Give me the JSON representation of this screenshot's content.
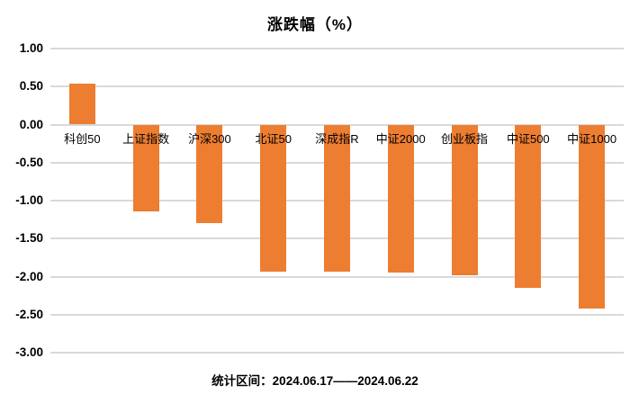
{
  "page": {
    "title": "涨跌幅（%）",
    "caption": "统计区间：2024.06.17——2024.06.22"
  },
  "colors": {
    "bar": "#ED7D31",
    "gridline": "#D9D9D9",
    "text": "#000000",
    "background": "#FFFFFF"
  },
  "chart_data": {
    "type": "bar",
    "title": "涨跌幅（%）",
    "categories": [
      "科创50",
      "上证指数",
      "沪深300",
      "北证50",
      "深成指R",
      "中证2000",
      "创业板指",
      "中证500",
      "中证1000"
    ],
    "values": [
      0.54,
      -1.14,
      -1.3,
      -1.93,
      -1.94,
      -1.95,
      -1.98,
      -2.15,
      -2.42
    ],
    "xlabel": "",
    "ylabel": "",
    "ylim": [
      -3.0,
      1.0
    ],
    "yticks": [
      1.0,
      0.5,
      0.0,
      -0.5,
      -1.0,
      -1.5,
      -2.0,
      -2.5,
      -3.0
    ],
    "ytick_labels": [
      "1.00",
      "0.50",
      "0.00",
      "-0.50",
      "-1.00",
      "-1.50",
      "-2.00",
      "-2.50",
      "-3.00"
    ],
    "grid": "horizontal",
    "legend": "none",
    "bar_color": "#ED7D31",
    "annotation": "统计区间：2024.06.17——2024.06.22"
  }
}
